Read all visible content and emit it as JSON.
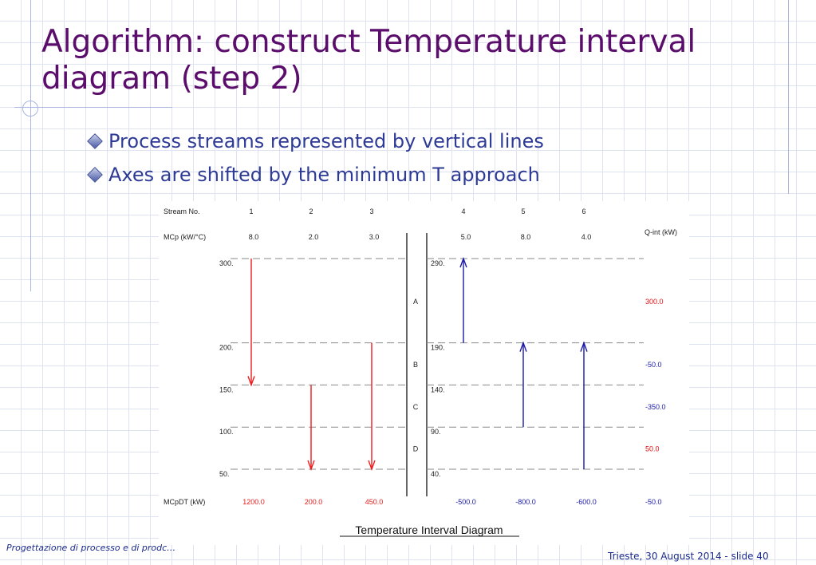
{
  "slide": {
    "title": "Algorithm: construct Temperature interval diagram (step 2)",
    "bullets": [
      "Process streams represented by vertical lines",
      "Axes are shifted by the minimum T approach"
    ],
    "footer_left": "Progettazione di processo e di prodc…",
    "footer_right": "Trieste,  30 August 2014 - slide 40"
  },
  "chart_data": {
    "type": "diagram",
    "title": "Temperature Interval Diagram",
    "row_labels": {
      "stream_no": "Stream No.",
      "mcp": "MCp (kW/°C)",
      "mcpdt": "MCpDT (kW)",
      "qint": "Q-int (kW)"
    },
    "hot_axis_ticks": [
      "300.",
      "200.",
      "150.",
      "100.",
      "50."
    ],
    "cold_axis_ticks": [
      "290.",
      "190.",
      "140.",
      "90.",
      "40."
    ],
    "hot_temps": [
      300,
      200,
      150,
      100,
      50
    ],
    "intervals": [
      "A",
      "B",
      "C",
      "D"
    ],
    "q_int": [
      "300.0",
      "-50.0",
      "-350.0",
      "50.0",
      "-50.0"
    ],
    "streams": [
      {
        "no": "1",
        "mcp": "8.0",
        "mcpdt": "1200.0",
        "kind": "hot",
        "from": 300,
        "to": 150
      },
      {
        "no": "2",
        "mcp": "2.0",
        "mcpdt": "200.0",
        "kind": "hot",
        "from": 150,
        "to": 50
      },
      {
        "no": "3",
        "mcp": "3.0",
        "mcpdt": "450.0",
        "kind": "hot",
        "from": 200,
        "to": 50
      },
      {
        "no": "4",
        "mcp": "5.0",
        "mcpdt": "-500.0",
        "kind": "cold",
        "from": 200,
        "to": 300
      },
      {
        "no": "5",
        "mcp": "8.0",
        "mcpdt": "-800.0",
        "kind": "cold",
        "from": 100,
        "to": 200
      },
      {
        "no": "6",
        "mcp": "4.0",
        "mcpdt": "-600.0",
        "kind": "cold",
        "from": 50,
        "to": 200
      }
    ],
    "colors": {
      "hot": "#ee1c1c",
      "cold": "#1a1aa8",
      "positive_q": "#e01010",
      "negative_q": "#1a1aa8",
      "dashed": "#8a8a8a"
    }
  }
}
